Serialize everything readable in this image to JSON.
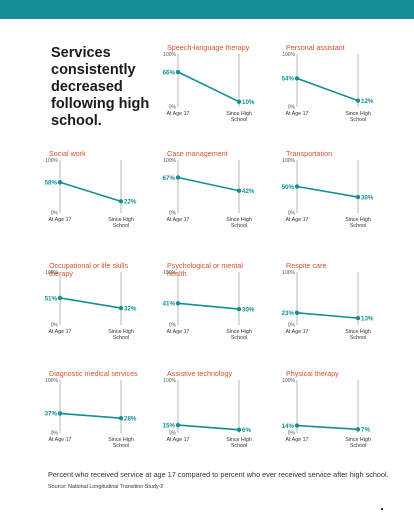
{
  "colors": {
    "accent": "#138f95",
    "title": "#d9502b",
    "axis": "#9a9a9a",
    "text": "#333333"
  },
  "headline": "Services consistently decreased following high school.",
  "footnote": "Percent who received service at age 17 compared to percent who ever received service after high school.",
  "source": "Source: National Longitudinal Transition Study-2",
  "chart_data": [
    {
      "type": "line",
      "title": "Speech-language therapy",
      "categories": [
        "At Age 17",
        "Since High School"
      ],
      "values": [
        66,
        10
      ],
      "value_labels": [
        "66%",
        "10%"
      ],
      "ylim": [
        0,
        100
      ],
      "ytick_labels": [
        "0%",
        "100%"
      ]
    },
    {
      "type": "line",
      "title": "Personal assistant",
      "categories": [
        "At Age 17",
        "Since High School"
      ],
      "values": [
        54,
        12
      ],
      "value_labels": [
        "54%",
        "12%"
      ],
      "ylim": [
        0,
        100
      ],
      "ytick_labels": [
        "0%",
        "100%"
      ]
    },
    {
      "type": "line",
      "title": "Social work",
      "categories": [
        "At Age 17",
        "Since High School"
      ],
      "values": [
        58,
        22
      ],
      "value_labels": [
        "58%",
        "22%"
      ],
      "ylim": [
        0,
        100
      ],
      "ytick_labels": [
        "0%",
        "100%"
      ]
    },
    {
      "type": "line",
      "title": "Case management",
      "categories": [
        "At Age 17",
        "Since High School"
      ],
      "values": [
        67,
        42
      ],
      "value_labels": [
        "67%",
        "42%"
      ],
      "ylim": [
        0,
        100
      ],
      "ytick_labels": [
        "0%",
        "100%"
      ]
    },
    {
      "type": "line",
      "title": "Transportation",
      "categories": [
        "At Age 17",
        "Since High School"
      ],
      "values": [
        50,
        30
      ],
      "value_labels": [
        "50%",
        "30%"
      ],
      "ylim": [
        0,
        100
      ],
      "ytick_labels": [
        "0%",
        "100%"
      ]
    },
    {
      "type": "line",
      "title": "Occupational or life skills therapy",
      "categories": [
        "At Age 17",
        "Since High School"
      ],
      "values": [
        51,
        32
      ],
      "value_labels": [
        "51%",
        "32%"
      ],
      "ylim": [
        0,
        100
      ],
      "ytick_labels": [
        "0%",
        "100%"
      ]
    },
    {
      "type": "line",
      "title": "Psychological or mental health",
      "categories": [
        "At Age 17",
        "Since High School"
      ],
      "values": [
        41,
        30
      ],
      "value_labels": [
        "41%",
        "30%"
      ],
      "ylim": [
        0,
        100
      ],
      "ytick_labels": [
        "0%",
        "100%"
      ]
    },
    {
      "type": "line",
      "title": "Respite care",
      "categories": [
        "At Age 17",
        "Since High School"
      ],
      "values": [
        23,
        13
      ],
      "value_labels": [
        "23%",
        "13%"
      ],
      "ylim": [
        0,
        100
      ],
      "ytick_labels": [
        "0%",
        "100%"
      ]
    },
    {
      "type": "line",
      "title": "Diagnostic medical services",
      "categories": [
        "At Age 17",
        "Since High School"
      ],
      "values": [
        37,
        28
      ],
      "value_labels": [
        "37%",
        "28%"
      ],
      "ylim": [
        0,
        100
      ],
      "ytick_labels": [
        "0%",
        "100%"
      ]
    },
    {
      "type": "line",
      "title": "Assistive technology",
      "categories": [
        "At Age 17",
        "Since High School"
      ],
      "values": [
        15,
        6
      ],
      "value_labels": [
        "15%",
        "6%"
      ],
      "ylim": [
        0,
        100
      ],
      "ytick_labels": [
        "0%",
        "100%"
      ]
    },
    {
      "type": "line",
      "title": "Physical therapy",
      "categories": [
        "At Age 17",
        "Since High School"
      ],
      "values": [
        14,
        7
      ],
      "value_labels": [
        "14%",
        "7%"
      ],
      "ylim": [
        0,
        100
      ],
      "ytick_labels": [
        "0%",
        "100%"
      ]
    }
  ]
}
